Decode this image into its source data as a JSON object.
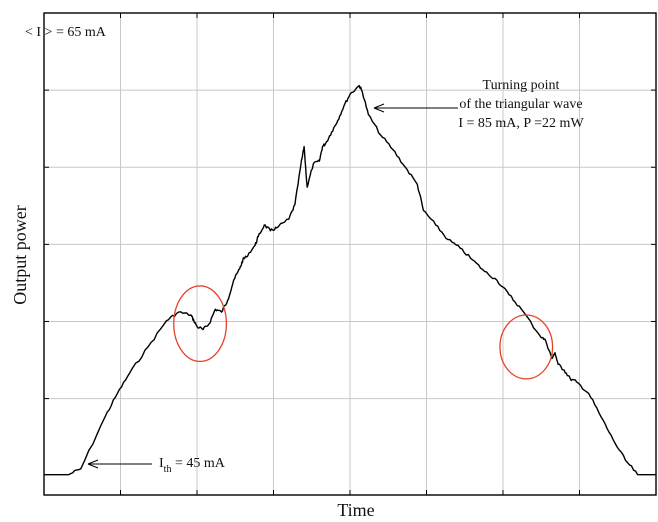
{
  "chart_data": {
    "type": "line",
    "xlabel": "Time",
    "ylabel": "Output power",
    "grid": true,
    "series": [
      {
        "x": [
          0.0,
          0.04,
          0.06,
          0.1,
          0.12,
          0.14,
          0.17,
          0.2,
          0.22,
          0.24,
          0.245,
          0.25,
          0.26,
          0.27,
          0.28,
          0.29,
          0.3,
          0.31,
          0.32,
          0.325,
          0.33,
          0.345,
          0.35,
          0.36,
          0.37,
          0.38,
          0.4,
          0.41,
          0.42,
          0.425,
          0.43,
          0.44,
          0.45,
          0.455,
          0.46,
          0.47,
          0.48,
          0.49,
          0.5,
          0.515,
          0.52,
          0.53,
          0.55,
          0.57,
          0.59,
          0.61,
          0.62,
          0.64,
          0.66,
          0.68,
          0.7,
          0.72,
          0.74,
          0.76,
          0.78,
          0.81,
          0.82,
          0.83,
          0.835,
          0.84,
          0.85,
          0.86,
          0.87,
          0.89,
          0.91,
          0.93,
          0.95,
          0.97,
          0.98,
          1.0
        ],
        "y": [
          0.0,
          0.0,
          0.02,
          0.2,
          0.28,
          0.35,
          0.44,
          0.53,
          0.56,
          0.55,
          0.53,
          0.51,
          0.5,
          0.52,
          0.57,
          0.56,
          0.6,
          0.67,
          0.71,
          0.74,
          0.75,
          0.79,
          0.82,
          0.86,
          0.84,
          0.85,
          0.88,
          0.93,
          1.07,
          1.13,
          0.99,
          1.07,
          1.08,
          1.13,
          1.14,
          1.18,
          1.22,
          1.27,
          1.31,
          1.34,
          1.32,
          1.24,
          1.17,
          1.12,
          1.06,
          1.0,
          0.91,
          0.86,
          0.81,
          0.78,
          0.74,
          0.7,
          0.67,
          0.62,
          0.57,
          0.48,
          0.46,
          0.4,
          0.42,
          0.38,
          0.36,
          0.33,
          0.32,
          0.28,
          0.2,
          0.12,
          0.05,
          0.0,
          0.0,
          0.0
        ]
      }
    ],
    "xlim": [
      0,
      1
    ],
    "ylim": [
      -0.07,
      1.59
    ],
    "ellipses": [
      {
        "cx": 0.255,
        "cy": 0.52,
        "rx": 0.043,
        "ry": 0.13
      },
      {
        "cx": 0.788,
        "cy": 0.44,
        "rx": 0.043,
        "ry": 0.11
      }
    ],
    "annotations": {
      "mean_current": "< I > = 65 mA",
      "turning_line1": "Turning point",
      "turning_line2": "of the triangular wave",
      "turning_line3": "I = 85 mA, P =22 mW",
      "threshold_prefix": "I",
      "threshold_sub": "th",
      "threshold_suffix": " = 45 mA"
    }
  }
}
